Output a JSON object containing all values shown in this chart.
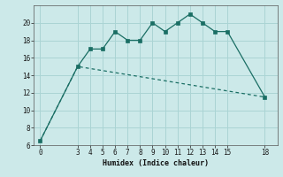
{
  "xlabel": "Humidex (Indice chaleur)",
  "background_color": "#cce9e9",
  "grid_color": "#aad4d4",
  "line_color": "#1a6e64",
  "line1_x": [
    0,
    3,
    4,
    5,
    6,
    7,
    8,
    9,
    10,
    11,
    12,
    13,
    14,
    15,
    18
  ],
  "line1_y": [
    6.5,
    15,
    17,
    17,
    19,
    18,
    18,
    20,
    19,
    20,
    21,
    20,
    19,
    19,
    11.5
  ],
  "line2_x": [
    0,
    3,
    18
  ],
  "line2_y": [
    6.5,
    15,
    11.5
  ],
  "xlim": [
    -0.5,
    19
  ],
  "ylim": [
    6,
    22
  ],
  "xticks": [
    0,
    3,
    4,
    5,
    6,
    7,
    8,
    9,
    10,
    11,
    12,
    13,
    14,
    15,
    18
  ],
  "yticks": [
    6,
    8,
    10,
    12,
    14,
    16,
    18,
    20
  ],
  "tick_fontsize": 5.5,
  "xlabel_fontsize": 6.0
}
